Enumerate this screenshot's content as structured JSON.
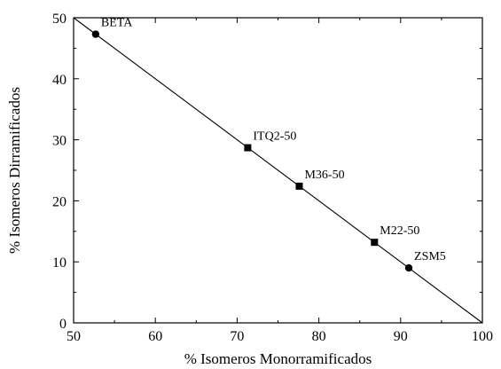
{
  "chart_data": {
    "type": "scatter",
    "xlabel": "% Isomeros Monorramificados",
    "ylabel": "% Isomeros Dirramificados",
    "xlim": [
      50,
      100
    ],
    "ylim": [
      0,
      50
    ],
    "xticks": [
      50,
      60,
      70,
      80,
      90,
      100
    ],
    "yticks": [
      0,
      10,
      20,
      30,
      40,
      50
    ],
    "grid": false,
    "points": [
      {
        "label": "BETA",
        "x": 52.7,
        "y": 47.3,
        "marker": "circle"
      },
      {
        "label": "ITQ2-50",
        "x": 71.3,
        "y": 28.7,
        "marker": "square"
      },
      {
        "label": "M36-50",
        "x": 77.6,
        "y": 22.4,
        "marker": "square"
      },
      {
        "label": "M22-50",
        "x": 86.8,
        "y": 13.2,
        "marker": "square"
      },
      {
        "label": "ZSM5",
        "x": 91.0,
        "y": 9.0,
        "marker": "circle"
      }
    ],
    "reference_line": {
      "x": [
        50,
        100
      ],
      "y": [
        50,
        0
      ]
    }
  }
}
